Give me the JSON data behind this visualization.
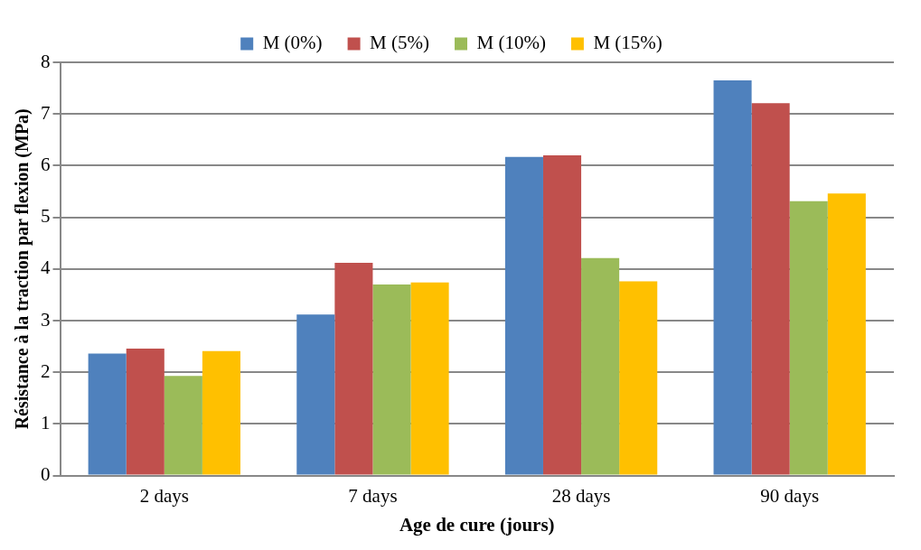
{
  "chart_data": {
    "type": "bar",
    "xlabel": "Age de cure (jours)",
    "ylabel": "Résistance à la traction par flexion (MPa)",
    "categories": [
      "2 days",
      "7 days",
      "28 days",
      "90 days"
    ],
    "series": [
      {
        "name": "M (0%)",
        "color": "#4f81bd",
        "values": [
          2.36,
          3.12,
          6.17,
          7.65
        ]
      },
      {
        "name": "M (5%)",
        "color": "#c0504d",
        "values": [
          2.46,
          4.12,
          6.2,
          7.21
        ]
      },
      {
        "name": "M (10%)",
        "color": "#9bbb59",
        "values": [
          1.93,
          3.7,
          4.21,
          5.31
        ]
      },
      {
        "name": "M (15%)",
        "color": "#ffc000",
        "values": [
          2.41,
          3.74,
          3.76,
          5.46
        ]
      }
    ],
    "ylim": [
      0,
      8
    ],
    "yticks": [
      0,
      1,
      2,
      3,
      4,
      5,
      6,
      7,
      8
    ],
    "grid": "y",
    "legend": "top"
  }
}
